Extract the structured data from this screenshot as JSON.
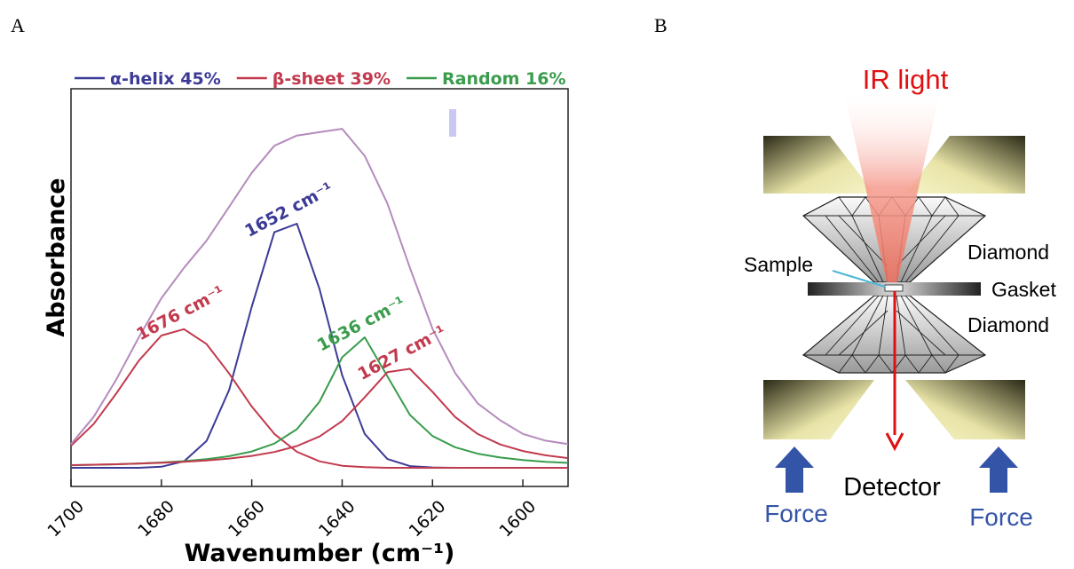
{
  "panel_labels": [
    "A",
    "B"
  ],
  "chart_data": {
    "type": "line",
    "x_label": "Wavenumber (cm⁻¹)",
    "y_label": "Absorbance",
    "xlim": [
      1700,
      1590
    ],
    "xticks": [
      1700,
      1680,
      1660,
      1640,
      1620,
      1600
    ],
    "ylim": [
      -0.055,
      1.118
    ],
    "x": [
      1700,
      1695,
      1690,
      1685,
      1680,
      1675,
      1670,
      1665,
      1660,
      1655,
      1650,
      1645,
      1640,
      1635,
      1630,
      1625,
      1620,
      1615,
      1610,
      1605,
      1600,
      1595,
      1590
    ],
    "series": [
      {
        "name": "α-helix 45%",
        "color": "#3c3a96",
        "values": [
          0,
          0,
          0,
          0,
          0.003,
          0.019,
          0.079,
          0.23,
          0.475,
          0.695,
          0.72,
          0.527,
          0.273,
          0.1,
          0.026,
          0.005,
          0.001,
          0,
          0,
          0,
          0,
          0,
          0
        ]
      },
      {
        "name": "β-sheet 39%",
        "color": "#c23a4e",
        "values": [
          0.065,
          0.129,
          0.219,
          0.316,
          0.39,
          0.409,
          0.365,
          0.278,
          0.181,
          0.1,
          0.047,
          0.019,
          0.006,
          0.002,
          0,
          0,
          0,
          0,
          0,
          0,
          0,
          0,
          0
        ]
      },
      {
        "name": "Random 16%",
        "color": "#3a9c4c",
        "values": [
          0.0076,
          0.0089,
          0.0105,
          0.0127,
          0.0157,
          0.0197,
          0.0255,
          0.0342,
          0.0481,
          0.0714,
          0.114,
          0.195,
          0.326,
          0.385,
          0.27,
          0.156,
          0.0938,
          0.0606,
          0.0417,
          0.0303,
          0.0229,
          0.0179,
          0.0144
        ]
      },
      {
        "color": "#c23a4e",
        "values": [
          0.0079,
          0.0091,
          0.0105,
          0.0123,
          0.0146,
          0.0176,
          0.0217,
          0.0272,
          0.035,
          0.0466,
          0.0642,
          0.0923,
          0.138,
          0.208,
          0.282,
          0.292,
          0.224,
          0.15,
          0.0998,
          0.0688,
          0.0495,
          0.037,
          0.0285
        ]
      },
      {
        "color": "#b58bbd",
        "values": [
          0.07,
          0.15,
          0.26,
          0.385,
          0.5,
          0.59,
          0.67,
          0.77,
          0.87,
          0.95,
          0.98,
          0.99,
          1.0,
          0.92,
          0.78,
          0.59,
          0.41,
          0.28,
          0.19,
          0.14,
          0.1,
          0.08,
          0.07
        ]
      }
    ],
    "annotations": [
      {
        "text": "1676 cm⁻¹",
        "x": 1676,
        "color": "#c23a4e"
      },
      {
        "text": "1652 cm⁻¹",
        "x": 1652,
        "color": "#3c3a96"
      },
      {
        "text": "1636 cm⁻¹",
        "x": 1636,
        "color": "#3a9c4c"
      },
      {
        "text": "1627 cm⁻¹",
        "x": 1627,
        "color": "#c23a4e"
      }
    ]
  },
  "diagram": {
    "ir_light": "IR light",
    "diamond_top": "Diamond",
    "sample": "Sample",
    "gasket": "Gasket",
    "diamond_bottom": "Diamond",
    "detector": "Detector",
    "force_left": "Force",
    "force_right": "Force"
  }
}
